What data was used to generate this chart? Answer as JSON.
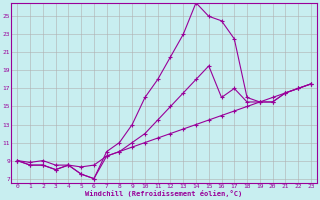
{
  "xlabel": "Windchill (Refroidissement éolien,°C)",
  "background_color": "#c8eef0",
  "grid_color": "#b0b0b0",
  "line_color": "#990099",
  "xlim": [
    -0.5,
    23.5
  ],
  "ylim": [
    6.5,
    26.5
  ],
  "yticks": [
    7,
    9,
    11,
    13,
    15,
    17,
    19,
    21,
    23,
    25
  ],
  "xticks": [
    0,
    1,
    2,
    3,
    4,
    5,
    6,
    7,
    8,
    9,
    10,
    11,
    12,
    13,
    14,
    15,
    16,
    17,
    18,
    19,
    20,
    21,
    22,
    23
  ],
  "curve_diag_x": [
    0,
    1,
    2,
    3,
    4,
    5,
    6,
    7,
    8,
    9,
    10,
    11,
    12,
    13,
    14,
    15,
    16,
    17,
    18,
    19,
    20,
    21,
    22,
    23
  ],
  "curve_diag_y": [
    9.0,
    8.8,
    9.0,
    8.5,
    8.5,
    8.3,
    8.5,
    9.5,
    10.0,
    10.5,
    11.0,
    11.5,
    12.0,
    12.5,
    13.0,
    13.5,
    14.0,
    14.5,
    15.0,
    15.5,
    16.0,
    16.5,
    17.0,
    17.5
  ],
  "curve_main_x": [
    0,
    1,
    2,
    3,
    4,
    5,
    6,
    7,
    8,
    9,
    10,
    11,
    12,
    13,
    14,
    15,
    16,
    17,
    18,
    19,
    20,
    21,
    22,
    23
  ],
  "curve_main_y": [
    9.0,
    8.5,
    8.5,
    8.0,
    8.5,
    7.5,
    7.0,
    10.0,
    11.0,
    13.0,
    16.0,
    18.0,
    20.5,
    23.0,
    26.5,
    25.0,
    24.5,
    22.5,
    16.0,
    15.5,
    15.5,
    16.5,
    17.0,
    17.5
  ],
  "curve_mid_x": [
    0,
    1,
    2,
    3,
    4,
    5,
    6,
    7,
    8,
    9,
    10,
    11,
    12,
    13,
    14,
    15,
    16,
    17,
    18,
    19,
    20,
    21,
    22,
    23
  ],
  "curve_mid_y": [
    9.0,
    8.5,
    8.5,
    8.0,
    8.5,
    7.5,
    7.0,
    9.5,
    10.0,
    11.0,
    12.0,
    13.5,
    15.0,
    16.5,
    18.0,
    19.5,
    16.0,
    17.0,
    15.5,
    15.5,
    15.5,
    16.5,
    17.0,
    17.5
  ]
}
